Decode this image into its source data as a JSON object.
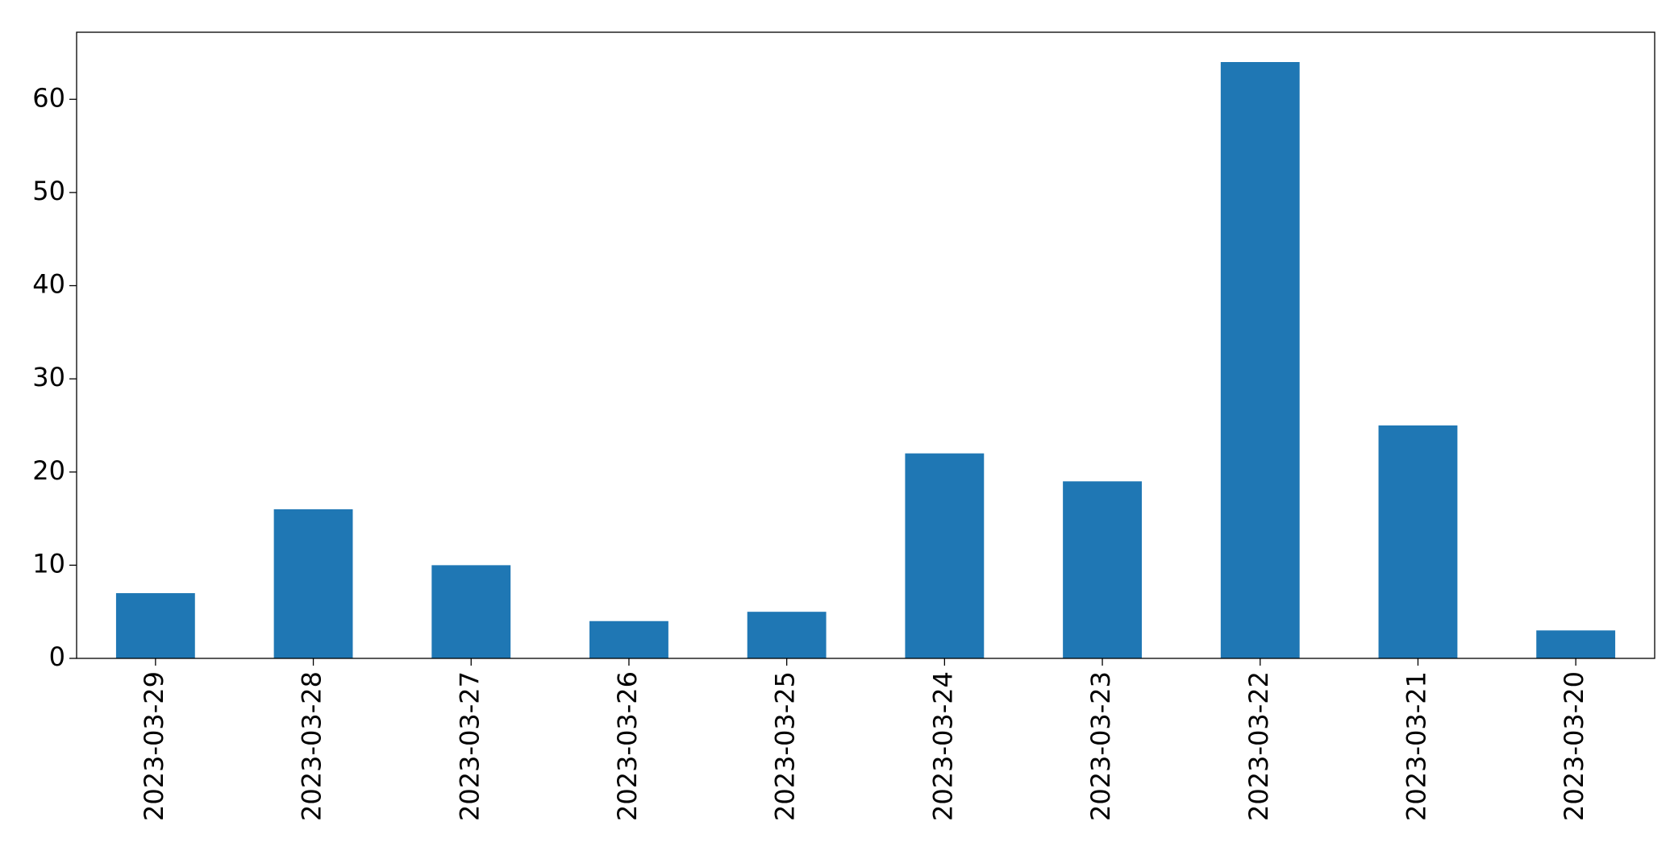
{
  "chart_data": {
    "type": "bar",
    "categories": [
      "2023-03-29",
      "2023-03-28",
      "2023-03-27",
      "2023-03-26",
      "2023-03-25",
      "2023-03-24",
      "2023-03-23",
      "2023-03-22",
      "2023-03-21",
      "2023-03-20"
    ],
    "values": [
      7,
      16,
      10,
      4,
      5,
      22,
      19,
      64,
      25,
      3
    ],
    "color": "#1f77b4",
    "ylim": [
      0,
      67.2
    ],
    "yticks": [
      0,
      10,
      20,
      30,
      40,
      50,
      60
    ],
    "grid": false
  }
}
